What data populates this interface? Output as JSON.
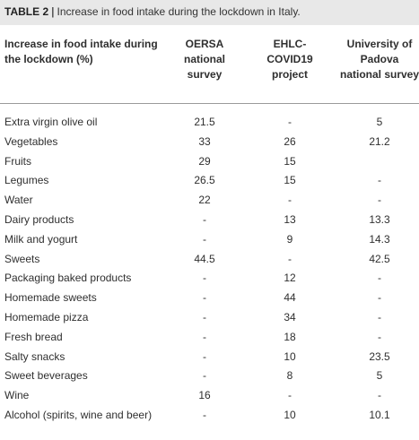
{
  "caption": {
    "label": "TABLE 2",
    "separator": "|",
    "text": "Increase in food intake during the lockdown in Italy."
  },
  "table": {
    "headers": [
      "Increase in food intake during the lockdown (%)",
      "OERSA national survey",
      "EHLC-COVID19 project",
      "University of Padova national survey"
    ],
    "rows": [
      [
        "Extra virgin olive oil",
        "21.5",
        "-",
        "5"
      ],
      [
        "Vegetables",
        "33",
        "26",
        "21.2"
      ],
      [
        "Fruits",
        "29",
        "15",
        ""
      ],
      [
        "Legumes",
        "26.5",
        "15",
        "-"
      ],
      [
        "Water",
        "22",
        "-",
        "-"
      ],
      [
        "Dairy products",
        "-",
        "13",
        "13.3"
      ],
      [
        "Milk and yogurt",
        "-",
        "9",
        "14.3"
      ],
      [
        "Sweets",
        "44.5",
        "-",
        "42.5"
      ],
      [
        "Packaging baked products",
        "-",
        "12",
        "-"
      ],
      [
        "Homemade sweets",
        "-",
        "44",
        "-"
      ],
      [
        "Homemade pizza",
        "-",
        "34",
        "-"
      ],
      [
        "Fresh bread",
        "-",
        "18",
        "-"
      ],
      [
        "Salty snacks",
        "-",
        "10",
        "23.5"
      ],
      [
        "Sweet beverages",
        "-",
        "8",
        "5"
      ],
      [
        "Wine",
        "16",
        "-",
        "-"
      ],
      [
        "Alcohol (spirits, wine and beer)",
        "-",
        "10",
        "10.1"
      ]
    ]
  }
}
